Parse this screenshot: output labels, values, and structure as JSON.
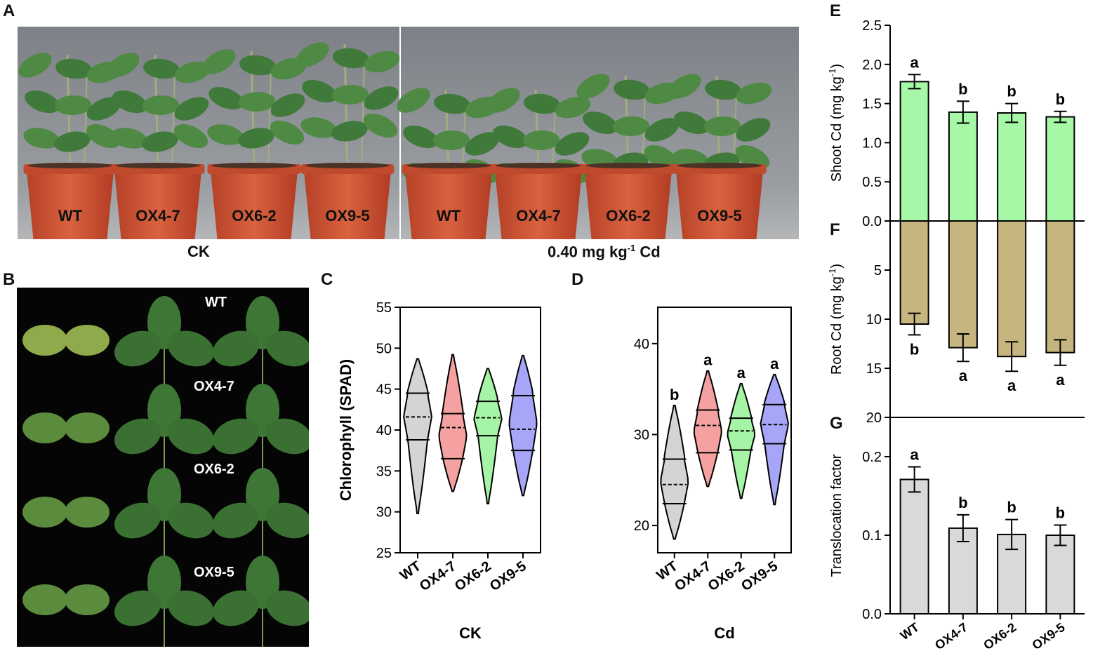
{
  "panel_letters": {
    "A": "A",
    "B": "B",
    "C": "C",
    "D": "D",
    "E": "E",
    "F": "F",
    "G": "G"
  },
  "panel_a": {
    "pot_labels": [
      "WT",
      "OX4-7",
      "OX6-2",
      "OX9-5",
      "WT",
      "OX4-7",
      "OX6-2",
      "OX9-5"
    ],
    "caption_ck": "CK",
    "caption_cd_pre": "0.40 mg kg",
    "caption_cd_sup": "-1",
    "caption_cd_post": " Cd"
  },
  "panel_b": {
    "labels": [
      "WT",
      "OX4-7",
      "OX6-2",
      "OX9-5"
    ]
  },
  "colors": {
    "WT": "#d4d4d4",
    "OX4-7": "#f5a1a1",
    "OX6-2": "#a6f5a6",
    "OX9-5": "#a7a5f7",
    "shoot": "#a6f7a6",
    "root": "#c6b57e",
    "tf": "#d9d9d9"
  },
  "chart_data": [
    {
      "id": "C",
      "type": "violin",
      "categories": [
        "WT",
        "OX4-7",
        "OX6-2",
        "OX9-5"
      ],
      "ylabel": "Chlorophyll (SPAD)",
      "xlabel": "CK",
      "ylim": [
        25,
        55
      ],
      "yticks": [
        25,
        30,
        35,
        40,
        45,
        50,
        55
      ],
      "series": [
        {
          "min": 29.8,
          "max": 48.7,
          "q1": 38.8,
          "median": 41.6,
          "q3": 44.5
        },
        {
          "min": 32.5,
          "max": 49.2,
          "q1": 36.5,
          "median": 40.3,
          "q3": 42.0
        },
        {
          "min": 31.0,
          "max": 47.5,
          "q1": 39.3,
          "median": 41.5,
          "q3": 43.5
        },
        {
          "min": 32.0,
          "max": 49.1,
          "q1": 37.5,
          "median": 40.1,
          "q3": 44.2
        }
      ]
    },
    {
      "id": "D",
      "type": "violin",
      "categories": [
        "WT",
        "OX4-7",
        "OX6-2",
        "OX9-5"
      ],
      "ylabel": "",
      "xlabel": "Cd",
      "ylim": [
        17,
        44
      ],
      "yticks": [
        20,
        30,
        40
      ],
      "letters": [
        "b",
        "a",
        "a",
        "a"
      ],
      "series": [
        {
          "min": 18.5,
          "max": 33.2,
          "q1": 22.4,
          "median": 24.5,
          "q3": 27.3
        },
        {
          "min": 24.3,
          "max": 37.0,
          "q1": 28.0,
          "median": 31.0,
          "q3": 32.7
        },
        {
          "min": 23.0,
          "max": 35.6,
          "q1": 28.3,
          "median": 30.4,
          "q3": 31.8
        },
        {
          "min": 22.3,
          "max": 36.6,
          "q1": 29.0,
          "median": 31.1,
          "q3": 33.3
        }
      ]
    },
    {
      "id": "E",
      "type": "bar",
      "categories": [
        "WT",
        "OX4-7",
        "OX6-2",
        "OX9-5"
      ],
      "ylabel_pre": "Shoot Cd (mg kg",
      "ylabel_sup": "-1",
      "ylabel_post": ")",
      "ylim": [
        0,
        2.5
      ],
      "yticks": [
        "0.0",
        "0.5",
        "1.0",
        "1.5",
        "2.0",
        "2.5"
      ],
      "values": [
        1.78,
        1.39,
        1.38,
        1.33
      ],
      "errors": [
        0.09,
        0.14,
        0.12,
        0.07
      ],
      "letters": [
        "a",
        "b",
        "b",
        "b"
      ]
    },
    {
      "id": "F",
      "type": "bar",
      "categories": [
        "WT",
        "OX4-7",
        "OX6-2",
        "OX9-5"
      ],
      "ylabel_pre": "Root Cd (mg kg",
      "ylabel_sup": "-1",
      "ylabel_post": ")",
      "ylim": [
        0,
        20
      ],
      "yticks": [
        "5",
        "10",
        "15",
        "20"
      ],
      "values": [
        10.5,
        12.9,
        13.8,
        13.4
      ],
      "errors": [
        1.1,
        1.4,
        1.5,
        1.3
      ],
      "letters": [
        "b",
        "a",
        "a",
        "a"
      ]
    },
    {
      "id": "G",
      "type": "bar",
      "categories": [
        "WT",
        "OX4-7",
        "OX6-2",
        "OX9-5"
      ],
      "ylabel": "Translocation factor",
      "ylim": [
        0,
        0.25
      ],
      "yticks": [
        "0.0",
        "0.1",
        "0.2"
      ],
      "values": [
        0.171,
        0.109,
        0.101,
        0.1
      ],
      "errors": [
        0.016,
        0.017,
        0.019,
        0.013
      ],
      "letters": [
        "a",
        "b",
        "b",
        "b"
      ]
    }
  ]
}
